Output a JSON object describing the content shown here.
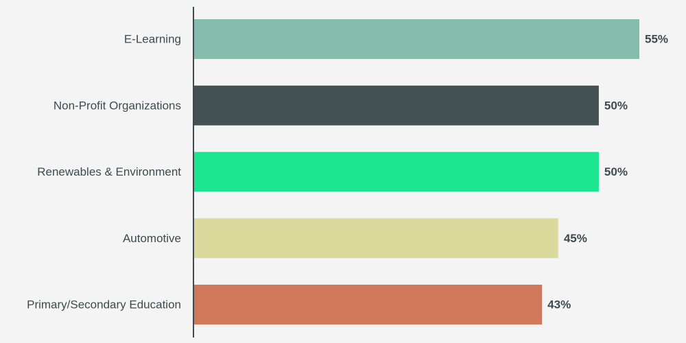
{
  "chart_data": {
    "type": "bar",
    "orientation": "horizontal",
    "categories": [
      "E-Learning",
      "Non-Profit Organizations",
      "Renewables & Environment",
      "Automotive",
      "Primary/Secondary Education"
    ],
    "values": [
      55,
      50,
      50,
      45,
      43
    ],
    "value_labels": [
      "55%",
      "50%",
      "50%",
      "45%",
      "43%"
    ],
    "colors": [
      "#84bcae",
      "#435155",
      "#1be68f",
      "#dcd99c",
      "#d2785a"
    ],
    "title": "",
    "xlabel": "",
    "ylabel": "",
    "grid": false,
    "legend": "none",
    "ylim": [
      0,
      55
    ]
  }
}
